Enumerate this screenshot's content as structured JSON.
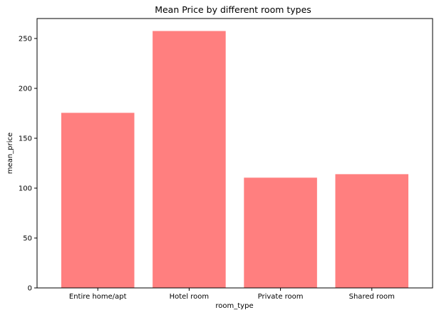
{
  "chart_data": {
    "type": "bar",
    "title": "Mean Price by different room types",
    "xlabel": "room_type",
    "ylabel": "mean_price",
    "categories": [
      "Entire home/apt",
      "Hotel room",
      "Private room",
      "Shared room"
    ],
    "values": [
      175.5,
      257.5,
      110.5,
      114
    ],
    "ylim": [
      0,
      270
    ],
    "yticks": [
      0,
      50,
      100,
      150,
      200,
      250
    ],
    "bar_color": "#ff7f7f",
    "grid": false,
    "legend": "none"
  }
}
